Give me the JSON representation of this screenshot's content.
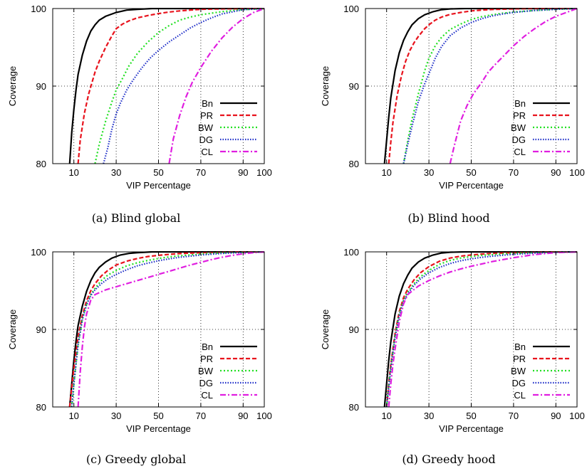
{
  "colors": {
    "Bn": "#000000",
    "PR": "#e8121c",
    "BW": "#22e022",
    "DG": "#1f2fc8",
    "CL": "#e01ee0"
  },
  "chart_data": [
    {
      "type": "line",
      "caption": "(a) Blind global",
      "xlabel": "VIP Percentage",
      "ylabel": "Coverage",
      "xlim": [
        0,
        100
      ],
      "ylim": [
        80,
        100
      ],
      "xticks": [
        10,
        30,
        50,
        70,
        90,
        100
      ],
      "yticks": [
        80,
        90,
        100
      ],
      "grid": true,
      "legend": "bottom-right",
      "series": [
        {
          "name": "Bn",
          "x": [
            8,
            9,
            10,
            11,
            12,
            14,
            16,
            18,
            20,
            22,
            25,
            30,
            35,
            40,
            47,
            60,
            100
          ],
          "y": [
            80,
            84,
            87,
            89.5,
            91.5,
            94,
            95.8,
            97.1,
            97.9,
            98.5,
            99,
            99.5,
            99.8,
            99.9,
            100,
            100,
            100
          ]
        },
        {
          "name": "PR",
          "x": [
            12,
            13,
            15,
            17,
            20,
            22,
            25,
            28,
            30,
            33,
            36,
            40,
            45,
            50,
            55,
            60,
            65,
            70,
            80,
            100
          ],
          "y": [
            80,
            83,
            86.5,
            89,
            91.8,
            93.2,
            95,
            96.5,
            97.4,
            98,
            98.4,
            98.8,
            99.1,
            99.35,
            99.55,
            99.7,
            99.8,
            99.9,
            99.95,
            100
          ]
        },
        {
          "name": "BW",
          "x": [
            20,
            22,
            25,
            28,
            30,
            33,
            36,
            40,
            45,
            50,
            55,
            60,
            65,
            70,
            80,
            90,
            100
          ],
          "y": [
            80,
            82.5,
            85.5,
            88,
            89.5,
            91,
            92.6,
            94.2,
            95.7,
            96.9,
            97.8,
            98.5,
            98.9,
            99.2,
            99.6,
            99.85,
            100
          ]
        },
        {
          "name": "DG",
          "x": [
            24,
            26,
            28,
            30,
            32,
            35,
            38,
            42,
            46,
            50,
            55,
            60,
            65,
            70,
            75,
            80,
            90,
            100
          ],
          "y": [
            80,
            82,
            84.5,
            86.4,
            87.8,
            89.5,
            90.8,
            92.3,
            93.6,
            94.6,
            95.7,
            96.6,
            97.5,
            98.2,
            98.8,
            99.3,
            99.85,
            100
          ]
        },
        {
          "name": "CL",
          "x": [
            55,
            57,
            60,
            63,
            66,
            70,
            75,
            80,
            85,
            90,
            95,
            100
          ],
          "y": [
            80,
            83.2,
            86.2,
            88.6,
            90.5,
            92.4,
            94.5,
            96.2,
            97.6,
            98.7,
            99.5,
            100
          ]
        }
      ]
    },
    {
      "type": "line",
      "caption": "(b) Blind hood",
      "xlabel": "VIP Percentage",
      "ylabel": "Coverage",
      "xlim": [
        0,
        100
      ],
      "ylim": [
        80,
        100
      ],
      "xticks": [
        10,
        30,
        50,
        70,
        90,
        100
      ],
      "yticks": [
        80,
        90,
        100
      ],
      "grid": true,
      "legend": "bottom-right",
      "series": [
        {
          "name": "Bn",
          "x": [
            9,
            10,
            11,
            12,
            14,
            16,
            18,
            20,
            22,
            25,
            28,
            32,
            36,
            40,
            47,
            60,
            100
          ],
          "y": [
            80,
            83,
            86,
            88.5,
            92,
            94.3,
            95.9,
            97,
            97.9,
            98.7,
            99.2,
            99.6,
            99.85,
            99.95,
            100,
            100,
            100
          ]
        },
        {
          "name": "PR",
          "x": [
            11,
            12,
            13,
            15,
            17,
            19,
            21,
            23,
            25,
            28,
            30,
            33,
            36,
            40,
            45,
            50,
            55,
            60,
            70,
            80,
            100
          ],
          "y": [
            80,
            82.8,
            85.3,
            88.8,
            91.3,
            93.2,
            94.6,
            95.6,
            96.4,
            97.4,
            97.9,
            98.5,
            98.9,
            99.25,
            99.5,
            99.7,
            99.8,
            99.88,
            99.95,
            100,
            100
          ]
        },
        {
          "name": "BW",
          "x": [
            18,
            20,
            22,
            25,
            28,
            30,
            33,
            36,
            40,
            45,
            50,
            55,
            60,
            65,
            70,
            80,
            90,
            100
          ],
          "y": [
            80,
            83,
            85.7,
            89,
            92,
            93.6,
            95.2,
            96.3,
            97.3,
            98,
            98.6,
            98.95,
            99.2,
            99.4,
            99.55,
            99.75,
            99.9,
            100
          ]
        },
        {
          "name": "DG",
          "x": [
            18,
            20,
            22,
            25,
            28,
            30,
            33,
            36,
            40,
            45,
            50,
            55,
            60,
            65,
            70,
            80,
            90,
            100
          ],
          "y": [
            80,
            82.5,
            84.8,
            88,
            90.3,
            91.6,
            93.6,
            95.1,
            96.5,
            97.5,
            98.2,
            98.7,
            99.05,
            99.3,
            99.5,
            99.75,
            99.9,
            100
          ]
        },
        {
          "name": "CL",
          "x": [
            40,
            42,
            45,
            48,
            51,
            55,
            58,
            61,
            65,
            70,
            75,
            80,
            85,
            90,
            95,
            100
          ],
          "y": [
            80,
            82.3,
            85.5,
            87.5,
            89,
            90.5,
            91.8,
            92.7,
            93.8,
            95.2,
            96.4,
            97.4,
            98.3,
            99,
            99.5,
            100
          ]
        }
      ]
    },
    {
      "type": "line",
      "caption": "(c) Greedy global",
      "xlabel": "VIP Percentage",
      "ylabel": "Coverage",
      "xlim": [
        0,
        100
      ],
      "ylim": [
        80,
        100
      ],
      "xticks": [
        10,
        30,
        50,
        70,
        90,
        100
      ],
      "yticks": [
        80,
        90,
        100
      ],
      "grid": true,
      "legend": "bottom-right",
      "series": [
        {
          "name": "Bn",
          "x": [
            8,
            9,
            10,
            11,
            12,
            14,
            16,
            18,
            20,
            22,
            25,
            28,
            32,
            36,
            40,
            47,
            60,
            100
          ],
          "y": [
            80,
            83,
            86,
            88.5,
            90.5,
            93,
            94.9,
            96.3,
            97.3,
            98,
            98.7,
            99.2,
            99.6,
            99.8,
            99.9,
            100,
            100,
            100
          ]
        },
        {
          "name": "PR",
          "x": [
            8,
            9,
            10,
            12,
            14,
            16,
            18,
            20,
            23,
            26,
            30,
            35,
            40,
            45,
            50,
            55,
            60,
            70,
            80,
            90,
            100
          ],
          "y": [
            80,
            82.5,
            85,
            89,
            91.8,
            93.7,
            95,
            95.9,
            96.9,
            97.6,
            98.3,
            98.8,
            99.15,
            99.4,
            99.55,
            99.68,
            99.78,
            99.9,
            99.96,
            100,
            100
          ]
        },
        {
          "name": "BW",
          "x": [
            9,
            10,
            12,
            14,
            16,
            18,
            20,
            23,
            26,
            30,
            35,
            40,
            45,
            50,
            55,
            60,
            70,
            80,
            90,
            100
          ],
          "y": [
            80,
            83,
            88,
            91.3,
            93.2,
            94.5,
            95.3,
            96.3,
            97,
            97.6,
            98.2,
            98.6,
            98.9,
            99.15,
            99.35,
            99.5,
            99.72,
            99.87,
            99.96,
            100
          ]
        },
        {
          "name": "DG",
          "x": [
            9,
            10,
            12,
            14,
            16,
            18,
            20,
            23,
            26,
            30,
            35,
            40,
            45,
            50,
            55,
            60,
            70,
            80,
            90,
            100
          ],
          "y": [
            80,
            83,
            88,
            91.3,
            93.2,
            94.4,
            95.1,
            95.9,
            96.5,
            97.1,
            97.7,
            98.2,
            98.55,
            98.85,
            99.1,
            99.3,
            99.6,
            99.8,
            99.93,
            100
          ]
        },
        {
          "name": "CL",
          "x": [
            12,
            13,
            14,
            15,
            16,
            18,
            20,
            25,
            30,
            35,
            40,
            45,
            50,
            55,
            60,
            65,
            70,
            75,
            80,
            85,
            90,
            95,
            100
          ],
          "y": [
            80,
            84.5,
            87.8,
            90.3,
            92,
            93.8,
            94.5,
            95.1,
            95.5,
            95.9,
            96.3,
            96.7,
            97.1,
            97.5,
            97.9,
            98.3,
            98.65,
            99,
            99.3,
            99.55,
            99.75,
            99.9,
            100
          ]
        }
      ]
    },
    {
      "type": "line",
      "caption": "(d) Greedy hood",
      "xlabel": "VIP Percentage",
      "ylabel": "Coverage",
      "xlim": [
        0,
        100
      ],
      "ylim": [
        80,
        100
      ],
      "xticks": [
        10,
        30,
        50,
        70,
        90,
        100
      ],
      "yticks": [
        80,
        90,
        100
      ],
      "grid": true,
      "legend": "bottom-right",
      "series": [
        {
          "name": "Bn",
          "x": [
            9,
            10,
            11,
            12,
            14,
            16,
            18,
            20,
            22,
            25,
            28,
            32,
            36,
            40,
            47,
            60,
            100
          ],
          "y": [
            80,
            83,
            86,
            88.4,
            92,
            94.3,
            95.9,
            97,
            97.9,
            98.7,
            99.2,
            99.6,
            99.85,
            99.95,
            100,
            100,
            100
          ]
        },
        {
          "name": "PR",
          "x": [
            10,
            11,
            12,
            14,
            16,
            18,
            20,
            23,
            26,
            30,
            35,
            40,
            45,
            50,
            55,
            60,
            70,
            80,
            90,
            100
          ],
          "y": [
            80,
            83,
            85.5,
            89.5,
            92.3,
            94.1,
            95.2,
            96.4,
            97.3,
            98.1,
            98.8,
            99.2,
            99.45,
            99.6,
            99.72,
            99.8,
            99.9,
            99.96,
            100,
            100
          ]
        },
        {
          "name": "BW",
          "x": [
            10,
            11,
            12,
            14,
            16,
            18,
            20,
            23,
            26,
            30,
            35,
            40,
            45,
            50,
            55,
            60,
            70,
            80,
            90,
            100
          ],
          "y": [
            80,
            82.8,
            85.2,
            89.2,
            92,
            93.8,
            94.8,
            95.9,
            96.8,
            97.6,
            98.4,
            98.9,
            99.2,
            99.4,
            99.55,
            99.65,
            99.8,
            99.9,
            99.97,
            100
          ]
        },
        {
          "name": "DG",
          "x": [
            10,
            11,
            12,
            14,
            16,
            18,
            20,
            23,
            26,
            30,
            35,
            40,
            45,
            50,
            55,
            60,
            70,
            80,
            90,
            100
          ],
          "y": [
            80,
            82.5,
            85,
            89,
            91.8,
            93.6,
            94.6,
            95.7,
            96.5,
            97.3,
            98,
            98.5,
            98.85,
            99.1,
            99.3,
            99.45,
            99.68,
            99.84,
            99.95,
            100
          ]
        },
        {
          "name": "CL",
          "x": [
            11,
            12,
            13,
            14,
            16,
            18,
            20,
            25,
            30,
            35,
            40,
            45,
            50,
            55,
            60,
            70,
            80,
            90,
            100
          ],
          "y": [
            80,
            83,
            85.5,
            87.5,
            91,
            93.3,
            94.5,
            95.6,
            96.3,
            96.9,
            97.4,
            97.8,
            98.15,
            98.45,
            98.75,
            99.25,
            99.65,
            99.9,
            100
          ]
        }
      ]
    }
  ]
}
